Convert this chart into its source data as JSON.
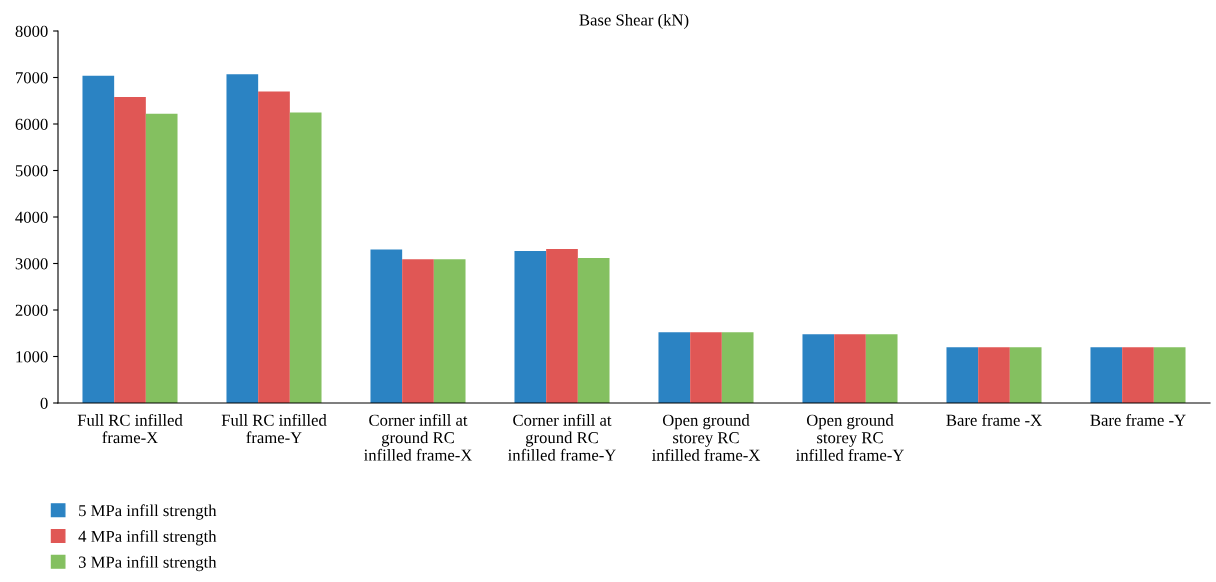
{
  "chart_data": {
    "type": "bar",
    "title": "Base Shear (kN)",
    "categories": [
      "Full RC infilled\nframe-X",
      "Full RC infilled\nframe-Y",
      "Corner infill at\nground RC\ninfilled frame-X",
      "Corner infill at\nground RC\ninfilled frame-Y",
      "Open ground\nstorey RC\ninfilled frame-X",
      "Open ground\nstorey RC\ninfilled frame-Y",
      "Bare frame -X",
      "Bare frame -Y"
    ],
    "series": [
      {
        "name": "5 MPa infill strength",
        "color": "#2b83c3",
        "values": [
          7040,
          7070,
          3300,
          3270,
          1520,
          1480,
          1200,
          1200
        ]
      },
      {
        "name": "4 MPa infill strength",
        "color": "#e05755",
        "values": [
          6580,
          6700,
          3090,
          3310,
          1520,
          1480,
          1200,
          1200
        ]
      },
      {
        "name": "3 MPa infill strength",
        "color": "#84c060",
        "values": [
          6220,
          6250,
          3090,
          3120,
          1520,
          1480,
          1200,
          1200
        ]
      }
    ],
    "ylim": [
      0,
      8000
    ],
    "yticks": [
      0,
      1000,
      2000,
      3000,
      4000,
      5000,
      6000,
      7000,
      8000
    ],
    "grid": false,
    "legend": "bottom left"
  }
}
